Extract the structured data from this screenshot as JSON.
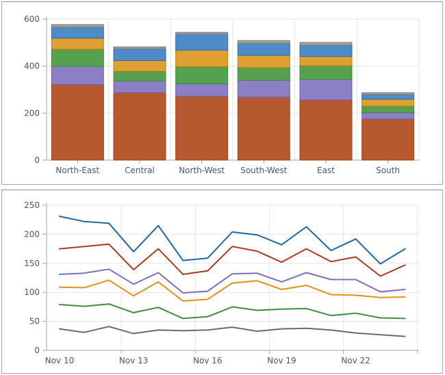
{
  "chart_data": [
    {
      "type": "bar",
      "stacked": true,
      "title": "",
      "legend": "none",
      "grid": true,
      "categories": [
        "North-East",
        "Central",
        "North-West",
        "South-West",
        "East",
        "South"
      ],
      "series": [
        {
          "name": "series-1-rust",
          "color": "#b7592e",
          "border": "#9d431a",
          "values": [
            321,
            287,
            272,
            268,
            256,
            175
          ]
        },
        {
          "name": "series-2-purple",
          "color": "#8d7fc5",
          "border": "#6e5fae",
          "values": [
            78,
            50,
            53,
            72,
            87,
            27
          ]
        },
        {
          "name": "series-3-green",
          "color": "#57a04f",
          "border": "#3b8a3b",
          "values": [
            73,
            41,
            73,
            54,
            59,
            28
          ]
        },
        {
          "name": "series-4-orange",
          "color": "#dfa032",
          "border": "#c07f10",
          "values": [
            47,
            46,
            70,
            52,
            39,
            29
          ]
        },
        {
          "name": "series-5-blue",
          "color": "#4d8bc9",
          "border": "#2f6aa5",
          "values": [
            46,
            50,
            68,
            51,
            48,
            20
          ]
        },
        {
          "name": "series-6-gray",
          "color": "#9e9e9e",
          "border": "#7d7d7d",
          "values": [
            12,
            8,
            8,
            12,
            12,
            8
          ]
        }
      ],
      "xlabel": "",
      "ylabel": "",
      "ylim": [
        0,
        600
      ],
      "yticks": [
        0,
        200,
        400,
        600
      ]
    },
    {
      "type": "line",
      "title": "",
      "legend": "none",
      "grid": true,
      "x": [
        "Nov 10",
        "Nov 11",
        "Nov 12",
        "Nov 13",
        "Nov 14",
        "Nov 15",
        "Nov 16",
        "Nov 17",
        "Nov 18",
        "Nov 19",
        "Nov 20",
        "Nov 21",
        "Nov 22",
        "Nov 23",
        "Nov 24"
      ],
      "xtick_labels": [
        "Nov 10",
        "Nov 13",
        "Nov 16",
        "Nov 19",
        "Nov 22"
      ],
      "xtick_step": 3,
      "series": [
        {
          "name": "series-1-blue",
          "color": "#1f66a3",
          "values": [
            231,
            222,
            219,
            170,
            215,
            155,
            159,
            204,
            199,
            182,
            213,
            172,
            192,
            149,
            175
          ]
        },
        {
          "name": "series-2-red",
          "color": "#aa3a1c",
          "values": [
            175,
            179,
            183,
            139,
            175,
            131,
            137,
            179,
            171,
            152,
            175,
            153,
            161,
            128,
            147
          ]
        },
        {
          "name": "series-3-purple",
          "color": "#7c6dbe",
          "values": [
            131,
            133,
            140,
            114,
            134,
            99,
            102,
            132,
            133,
            118,
            134,
            122,
            122,
            101,
            105
          ]
        },
        {
          "name": "series-4-orange",
          "color": "#de9215",
          "values": [
            109,
            108,
            121,
            94,
            118,
            85,
            88,
            116,
            120,
            105,
            112,
            96,
            95,
            91,
            92
          ]
        },
        {
          "name": "series-5-green",
          "color": "#3c8e3e",
          "values": [
            79,
            76,
            80,
            65,
            74,
            55,
            58,
            75,
            69,
            71,
            72,
            60,
            64,
            56,
            55
          ]
        },
        {
          "name": "series-6-gray",
          "color": "#6a6a6a",
          "values": [
            37,
            31,
            41,
            29,
            35,
            34,
            35,
            40,
            33,
            37,
            38,
            35,
            30,
            27,
            24
          ]
        }
      ],
      "xlabel": "",
      "ylabel": "",
      "ylim": [
        0,
        250
      ],
      "yticks": [
        0,
        50,
        100,
        150,
        200,
        250
      ]
    }
  ],
  "style_colors": {
    "axis_text": "#4b5662",
    "gridline": "#e4e4e4",
    "axis_line": "#a6a6a6",
    "panel_border": "#a3a3a3"
  }
}
